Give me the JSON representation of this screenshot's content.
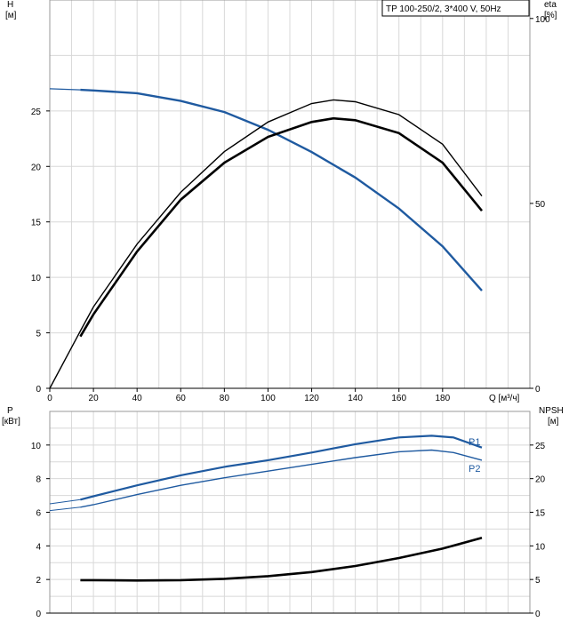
{
  "chart_data": [
    {
      "type": "line",
      "model_label": "TP 100-250/2, 3*400 V, 50Hz",
      "ylabel": "H",
      "ylabel_unit": "[м]",
      "y2label": "eta",
      "y2label_unit": "[%]",
      "xlabel": "Q [м³/ч]",
      "xlim": [
        0,
        220
      ],
      "xticks": [
        0,
        20,
        40,
        60,
        80,
        100,
        120,
        140,
        160,
        180
      ],
      "ylim": [
        0,
        35
      ],
      "yticks": [
        0,
        5,
        10,
        15,
        20,
        25
      ],
      "y2lim": [
        0,
        105
      ],
      "y2ticks": [
        0,
        50,
        100
      ],
      "grid": true,
      "colors": {
        "head": "#1f5aa0",
        "eta": "#000000"
      },
      "series": [
        {
          "role": "head",
          "x": [
            0,
            14,
            20,
            40,
            60,
            80,
            100,
            120,
            140,
            160,
            180,
            198
          ],
          "y": [
            27.0,
            26.9,
            26.85,
            26.6,
            25.9,
            24.9,
            23.3,
            21.3,
            19.0,
            16.2,
            12.8,
            8.8
          ],
          "style": "thin-start"
        },
        {
          "role": "eta-thin",
          "axis": "y2",
          "x": [
            0,
            14,
            20,
            40,
            60,
            80,
            100,
            120,
            130,
            140,
            160,
            180,
            198
          ],
          "y": [
            0,
            15.5,
            22,
            39,
            53,
            64,
            72,
            77,
            78,
            77.5,
            74,
            66,
            52
          ]
        },
        {
          "role": "eta-thick",
          "axis": "y2",
          "x": [
            14,
            20,
            40,
            60,
            80,
            100,
            120,
            130,
            140,
            160,
            180,
            198
          ],
          "y": [
            14,
            20,
            37,
            51,
            61,
            68,
            72,
            73,
            72.5,
            69,
            61,
            48
          ]
        }
      ]
    },
    {
      "type": "line",
      "ylabel": "P",
      "ylabel_unit": "[кВт]",
      "y2label": "NPSH",
      "y2label_unit": "[м]",
      "xlim": [
        0,
        220
      ],
      "ylim": [
        0,
        12
      ],
      "yticks": [
        0,
        2,
        4,
        6,
        8,
        10
      ],
      "y2lim": [
        0,
        30
      ],
      "y2ticks": [
        0,
        5,
        10,
        15,
        20,
        25
      ],
      "grid": true,
      "series": [
        {
          "name": "P1",
          "x": [
            0,
            14,
            20,
            40,
            60,
            80,
            100,
            120,
            140,
            160,
            175,
            185,
            198
          ],
          "y": [
            6.5,
            6.75,
            6.95,
            7.6,
            8.2,
            8.7,
            9.1,
            9.55,
            10.05,
            10.45,
            10.55,
            10.45,
            9.85
          ],
          "color": "#1f5aa0"
        },
        {
          "name": "P2",
          "x": [
            0,
            14,
            20,
            40,
            60,
            80,
            100,
            120,
            140,
            160,
            175,
            185,
            198
          ],
          "y": [
            6.1,
            6.3,
            6.45,
            7.05,
            7.6,
            8.05,
            8.45,
            8.85,
            9.25,
            9.6,
            9.7,
            9.55,
            9.1
          ],
          "color": "#1f5aa0"
        },
        {
          "role": "npsh",
          "axis": "y2",
          "x": [
            14,
            20,
            40,
            60,
            80,
            100,
            120,
            140,
            160,
            180,
            198
          ],
          "y": [
            4.9,
            4.9,
            4.85,
            4.9,
            5.1,
            5.5,
            6.1,
            7.0,
            8.2,
            9.6,
            11.2
          ],
          "color": "#000000"
        }
      ]
    }
  ]
}
